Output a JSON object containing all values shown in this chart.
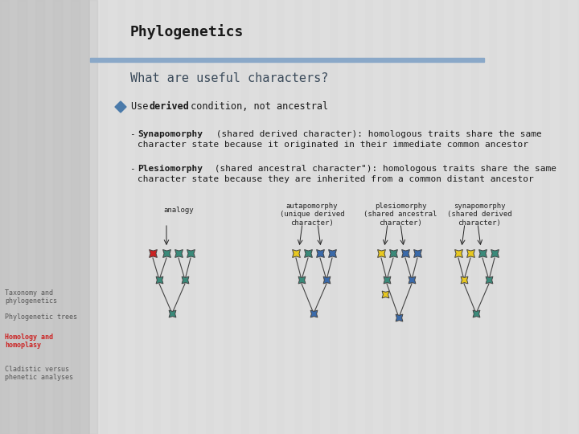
{
  "title": "Phylogenetics",
  "subtitle": "What are useful characters?",
  "bg_color": "#d4d4d4",
  "content_bg": "#dcdcdc",
  "left_panel_color": "#c8c8c8",
  "header_bar_color": "#8aa8c8",
  "title_color": "#1a1a1a",
  "subtitle_color": "#3a4a5a",
  "bullet_color": "#4a7aaa",
  "body_text_color": "#1a1a1a",
  "left_labels": [
    "Taxonomy and\nphylogenetics",
    "Phylogenetic trees",
    "Homology and\nhomoplasy",
    "Cladistic versus\nphenetic analyses"
  ],
  "left_label_colors": [
    "#555555",
    "#555555",
    "#cc2222",
    "#555555"
  ],
  "left_label_bold": [
    false,
    false,
    true,
    false
  ],
  "diagram_labels": [
    "analogy",
    "autapomorphy\n(unique derived\ncharacter)",
    "plesiomorphy\n(shared ancestral\ncharacter)",
    "synapomorphy\n(shared derived\ncharacter)"
  ],
  "teal": "#3a8a7a",
  "blue": "#3a6aaa",
  "yellow": "#e8c820",
  "red": "#cc2222",
  "stripe_light": "#e0e0e0",
  "stripe_dark": "#c4c4c4"
}
